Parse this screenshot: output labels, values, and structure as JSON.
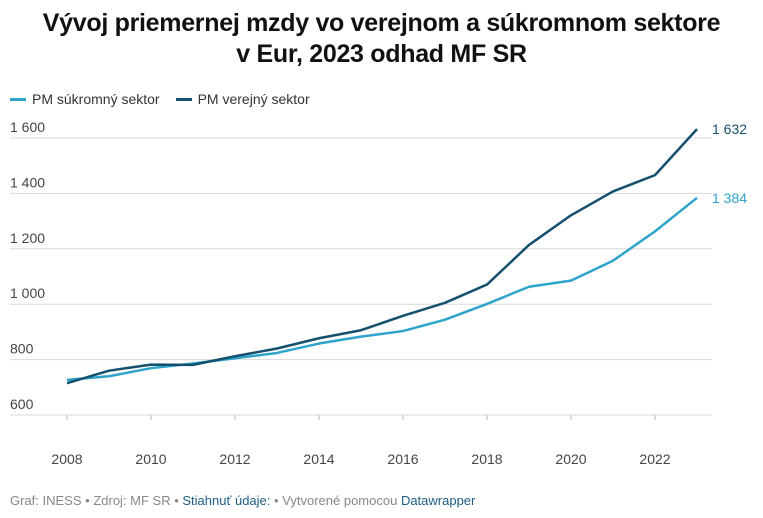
{
  "chart_data": {
    "type": "line",
    "title": "Vývoj priemernej mzdy vo verejnom a súkromnom sektore v Eur, 2023 odhad MF SR",
    "title_lines": [
      "Vývoj priemernej mzdy vo verejnom a súkromnom sektore",
      "v Eur, 2023 odhad MF SR"
    ],
    "x": [
      2008,
      2009,
      2010,
      2011,
      2012,
      2013,
      2014,
      2015,
      2016,
      2017,
      2018,
      2019,
      2020,
      2021,
      2022,
      2023
    ],
    "series": [
      {
        "name": "PM súkromný sektor",
        "color": "#2ea3cc",
        "end_label": "1 384",
        "values": [
          727,
          740,
          769,
          786,
          805,
          824,
          858,
          883,
          903,
          944,
          1001,
          1063,
          1085,
          1157,
          1263,
          1384
        ]
      },
      {
        "name": "PM verejný sektor",
        "color": "#15506f",
        "end_label": "1 632",
        "values": [
          715,
          760,
          782,
          781,
          812,
          840,
          877,
          906,
          958,
          1005,
          1071,
          1214,
          1321,
          1407,
          1466,
          1632
        ]
      }
    ],
    "ylim": [
      600,
      1600
    ],
    "yticks": [
      600,
      800,
      1000,
      1200,
      1400,
      1600
    ],
    "ytick_labels": [
      "600",
      "800",
      "1 000",
      "1 200",
      "1 400",
      "1 600"
    ],
    "xticks": [
      2008,
      2010,
      2012,
      2014,
      2016,
      2018,
      2020,
      2022
    ],
    "xtick_labels": [
      "2008",
      "2010",
      "2012",
      "2014",
      "2016",
      "2018",
      "2020",
      "2022"
    ],
    "xlabel": "",
    "ylabel": "",
    "grid": true,
    "legend": "top-left"
  },
  "footer": {
    "graf": "Graf: INESS",
    "sep": " • ",
    "zdroj": "Zdroj: MF SR",
    "download": "Stiahnuť údaje:",
    "created": "Vytvorené pomocou",
    "tool": "Datawrapper"
  }
}
